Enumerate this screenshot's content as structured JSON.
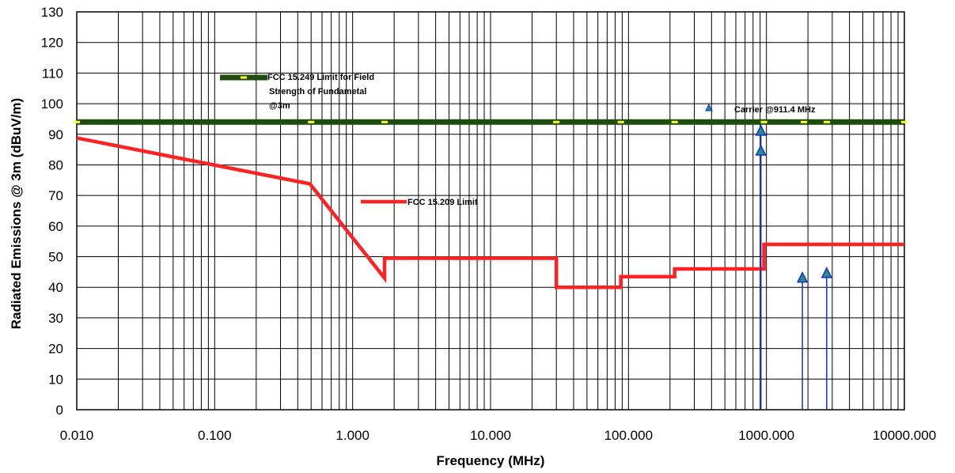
{
  "chart_data": {
    "type": "line",
    "xscale": "log",
    "xlim": [
      0.01,
      10000
    ],
    "ylim": [
      0,
      130
    ],
    "grid": true,
    "xlabel": "Frequency (MHz)",
    "ylabel": "Radiated Emissions @ 3m (dBuV/m)",
    "xticks": [
      "0.010",
      "0.100",
      "1.000",
      "10.000",
      "100.000",
      "1000.000",
      "10000.000"
    ],
    "yticks": [
      "0",
      "10",
      "20",
      "30",
      "40",
      "50",
      "60",
      "70",
      "80",
      "90",
      "100",
      "110",
      "120",
      "130"
    ],
    "series": [
      {
        "name": "FCC 15.249 Limit for Field Strength of Fundametal @3m",
        "color": "#1f4d0f",
        "marker_color": "#ffff33",
        "x": [
          0.01,
          0.5,
          1.705,
          30,
          88,
          216,
          960,
          1870,
          2740,
          10000
        ],
        "y": [
          94,
          94,
          94,
          94,
          94,
          94,
          94,
          94,
          94,
          94
        ]
      },
      {
        "name": "FCC 15.209 Limit",
        "color": "#ff2222",
        "x": [
          0.01,
          0.49,
          1.705,
          1.705,
          30,
          30,
          88,
          88,
          216,
          216,
          960,
          960,
          10000
        ],
        "y": [
          88.8,
          73.8,
          43,
          49.5,
          49.5,
          40,
          40,
          43.5,
          43.5,
          46,
          46,
          54,
          54
        ]
      },
      {
        "name": "Carrier @911.4 MHz",
        "color": "#3366aa",
        "x": [
          911.4,
          911.4,
          1822.8,
          2734.2
        ],
        "y": [
          91,
          84.5,
          43,
          44.5
        ]
      }
    ]
  }
}
